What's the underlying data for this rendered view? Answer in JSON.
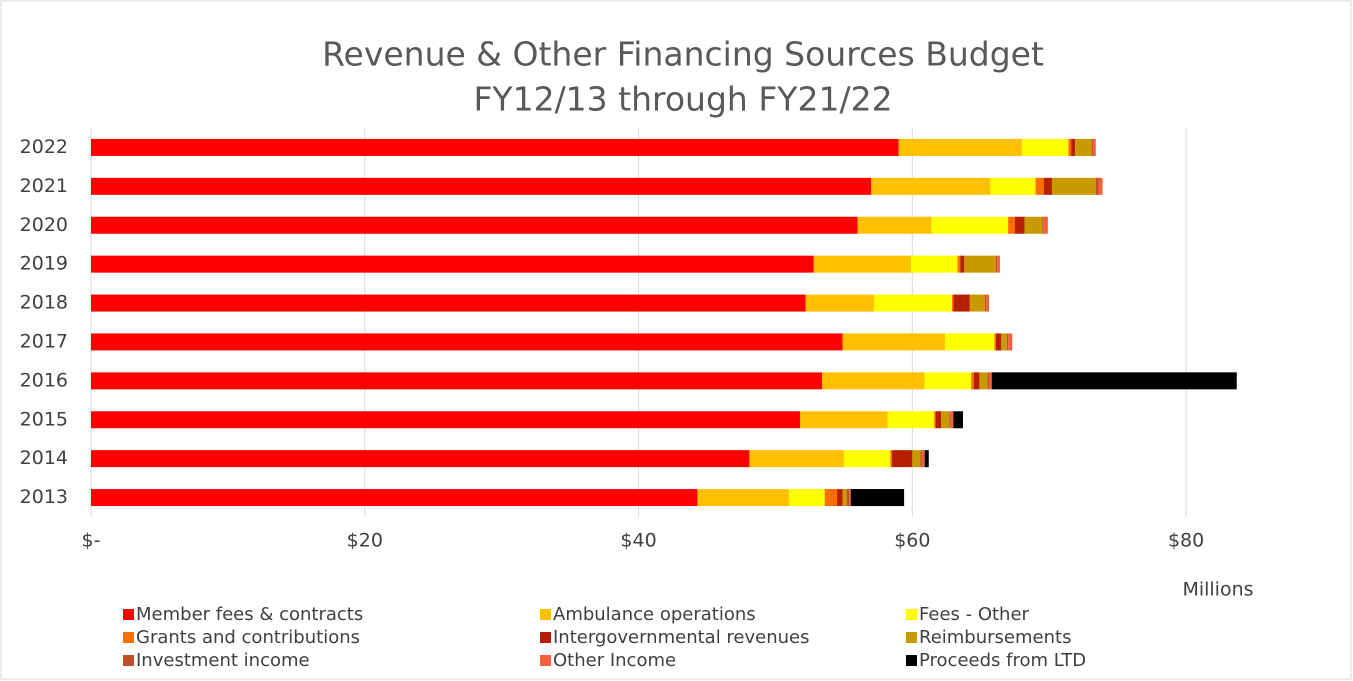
{
  "chart_data": {
    "type": "stacked_barh",
    "title": "Revenue & Other Financing Sources Budget",
    "subtitle": "FY12/13 through FY21/22",
    "x_unit_label": "Millions",
    "categories": [
      "2022",
      "2021",
      "2020",
      "2019",
      "2018",
      "2017",
      "2016",
      "2015",
      "2014",
      "2013"
    ],
    "series": [
      {
        "name": "Member fees & contracts",
        "color": "#ff0000",
        "values": [
          59.0,
          57.0,
          56.0,
          52.8,
          52.2,
          54.9,
          53.4,
          51.8,
          48.1,
          44.3
        ]
      },
      {
        "name": "Ambulance operations",
        "color": "#ffc000",
        "values": [
          9.0,
          8.7,
          5.4,
          7.1,
          5.0,
          7.5,
          7.5,
          6.4,
          6.9,
          6.7
        ]
      },
      {
        "name": "Fees - Other",
        "color": "#ffff00",
        "values": [
          3.4,
          3.3,
          5.6,
          3.4,
          5.7,
          3.6,
          3.4,
          3.4,
          3.4,
          2.6
        ]
      },
      {
        "name": "Grants and contributions",
        "color": "#ff6f00",
        "values": [
          0.2,
          0.6,
          0.5,
          0.2,
          0.1,
          0.1,
          0.2,
          0.1,
          0.1,
          0.9
        ]
      },
      {
        "name": "Intergovernmental revenues",
        "color": "#b52000",
        "values": [
          0.3,
          0.6,
          0.7,
          0.3,
          1.2,
          0.4,
          0.4,
          0.4,
          1.5,
          0.4
        ]
      },
      {
        "name": "Reimbursements",
        "color": "#c99a00",
        "values": [
          1.2,
          3.2,
          1.3,
          2.3,
          1.1,
          0.4,
          0.6,
          0.6,
          0.6,
          0.3
        ]
      },
      {
        "name": "Investment income",
        "color": "#c0502a",
        "values": [
          0.1,
          0.2,
          0.1,
          0.1,
          0.1,
          0.1,
          0.1,
          0.1,
          0.1,
          0.2
        ]
      },
      {
        "name": "Other Income",
        "color": "#f4603c",
        "values": [
          0.2,
          0.3,
          0.3,
          0.2,
          0.2,
          0.3,
          0.2,
          0.2,
          0.2,
          0.1
        ]
      },
      {
        "name": "Proceeds from LTD",
        "color": "#000000",
        "values": [
          0,
          0,
          0,
          0,
          0,
          0,
          17.9,
          0.7,
          0.3,
          3.9
        ]
      }
    ],
    "xlim": [
      0,
      90
    ],
    "xticks": [
      {
        "value": 0,
        "label": "$-"
      },
      {
        "value": 20,
        "label": "$20"
      },
      {
        "value": 40,
        "label": "$40"
      },
      {
        "value": 60,
        "label": "$60"
      },
      {
        "value": 80,
        "label": "$80"
      }
    ],
    "grid": true,
    "legend": "bottom"
  }
}
